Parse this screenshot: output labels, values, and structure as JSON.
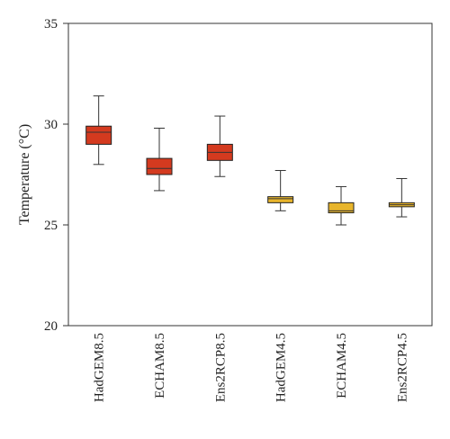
{
  "chart_data": {
    "type": "box",
    "ylabel": "Temperature (°C)",
    "ylim": [
      20,
      35
    ],
    "yticks": [
      20,
      25,
      30,
      35
    ],
    "categories": [
      "HadGEM8.5",
      "ECHAM8.5",
      "Ens2RCP8.5",
      "HadGEM4.5",
      "ECHAM4.5",
      "Ens2RCP4.5"
    ],
    "boxes": [
      {
        "label": "HadGEM8.5",
        "min": 28.0,
        "q1": 29.0,
        "median": 29.6,
        "q3": 29.9,
        "max": 31.4,
        "color": "#d43a1f"
      },
      {
        "label": "ECHAM8.5",
        "min": 26.7,
        "q1": 27.5,
        "median": 27.8,
        "q3": 28.3,
        "max": 29.8,
        "color": "#d43a1f"
      },
      {
        "label": "Ens2RCP8.5",
        "min": 27.4,
        "q1": 28.2,
        "median": 28.6,
        "q3": 29.0,
        "max": 30.4,
        "color": "#d43a1f"
      },
      {
        "label": "HadGEM4.5",
        "min": 25.7,
        "q1": 26.1,
        "median": 26.3,
        "q3": 26.4,
        "max": 27.7,
        "color": "#e8b52c"
      },
      {
        "label": "ECHAM4.5",
        "min": 25.0,
        "q1": 25.6,
        "median": 25.7,
        "q3": 26.1,
        "max": 26.9,
        "color": "#e8b52c"
      },
      {
        "label": "Ens2RCP4.5",
        "min": 25.4,
        "q1": 25.9,
        "median": 26.0,
        "q3": 26.1,
        "max": 27.3,
        "color": "#e8b52c"
      }
    ],
    "grid": false
  }
}
